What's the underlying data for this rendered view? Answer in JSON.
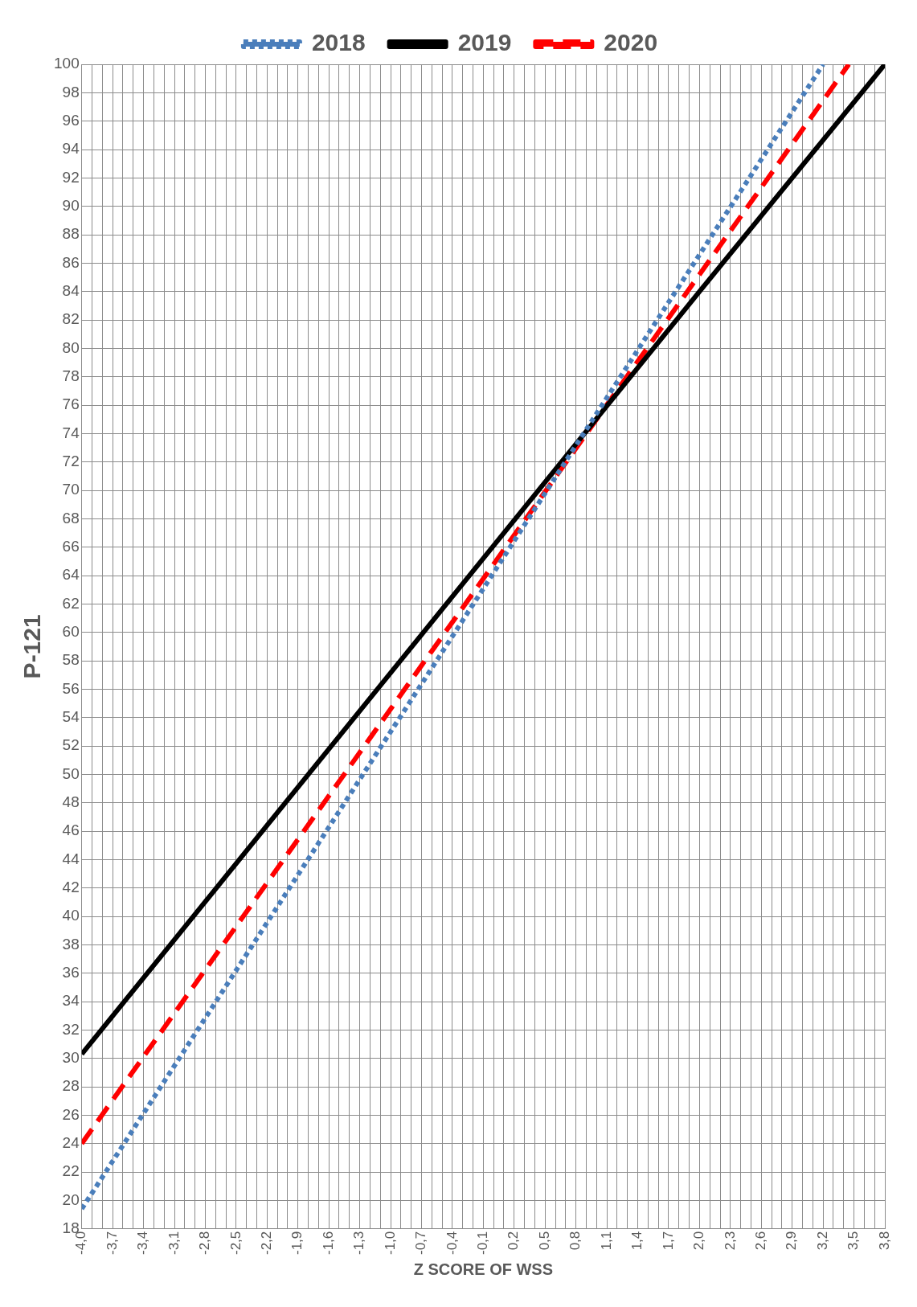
{
  "chart_data": {
    "type": "line",
    "xlabel": "Z SCORE OF WSS",
    "ylabel": "P-121",
    "xlim": [
      -4.0,
      3.8
    ],
    "ylim": [
      18,
      100
    ],
    "xticks": [
      {
        "value": -4.0,
        "label": "-4,0"
      },
      {
        "value": -3.9,
        "label": null
      },
      {
        "value": -3.8,
        "label": null
      },
      {
        "value": -3.7,
        "label": "-3,7"
      },
      {
        "value": -3.6,
        "label": null
      },
      {
        "value": -3.5,
        "label": null
      },
      {
        "value": -3.4,
        "label": "-3,4"
      },
      {
        "value": -3.3,
        "label": null
      },
      {
        "value": -3.2,
        "label": null
      },
      {
        "value": -3.1,
        "label": "-3,1"
      },
      {
        "value": -3.0,
        "label": null
      },
      {
        "value": -2.9,
        "label": null
      },
      {
        "value": -2.8,
        "label": "-2,8"
      },
      {
        "value": -2.7,
        "label": null
      },
      {
        "value": -2.6,
        "label": null
      },
      {
        "value": -2.5,
        "label": "-2,5"
      },
      {
        "value": -2.4,
        "label": null
      },
      {
        "value": -2.3,
        "label": null
      },
      {
        "value": -2.2,
        "label": "-2,2"
      },
      {
        "value": -2.1,
        "label": null
      },
      {
        "value": -2.0,
        "label": null
      },
      {
        "value": -1.9,
        "label": "-1,9"
      },
      {
        "value": -1.8,
        "label": null
      },
      {
        "value": -1.7,
        "label": null
      },
      {
        "value": -1.6,
        "label": "-1,6"
      },
      {
        "value": -1.5,
        "label": null
      },
      {
        "value": -1.4,
        "label": null
      },
      {
        "value": -1.3,
        "label": "-1,3"
      },
      {
        "value": -1.2,
        "label": null
      },
      {
        "value": -1.1,
        "label": null
      },
      {
        "value": -1.0,
        "label": "-1,0"
      },
      {
        "value": -0.9,
        "label": null
      },
      {
        "value": -0.8,
        "label": null
      },
      {
        "value": -0.7,
        "label": "-0,7"
      },
      {
        "value": -0.6,
        "label": null
      },
      {
        "value": -0.5,
        "label": null
      },
      {
        "value": -0.4,
        "label": "-0,4"
      },
      {
        "value": -0.3,
        "label": null
      },
      {
        "value": -0.2,
        "label": null
      },
      {
        "value": -0.1,
        "label": "-0,1"
      },
      {
        "value": 0.0,
        "label": null
      },
      {
        "value": 0.1,
        "label": null
      },
      {
        "value": 0.2,
        "label": "0,2"
      },
      {
        "value": 0.3,
        "label": null
      },
      {
        "value": 0.4,
        "label": null
      },
      {
        "value": 0.5,
        "label": "0,5"
      },
      {
        "value": 0.6,
        "label": null
      },
      {
        "value": 0.7,
        "label": null
      },
      {
        "value": 0.8,
        "label": "0,8"
      },
      {
        "value": 0.9,
        "label": null
      },
      {
        "value": 1.0,
        "label": null
      },
      {
        "value": 1.1,
        "label": "1,1"
      },
      {
        "value": 1.2,
        "label": null
      },
      {
        "value": 1.3,
        "label": null
      },
      {
        "value": 1.4,
        "label": "1,4"
      },
      {
        "value": 1.5,
        "label": null
      },
      {
        "value": 1.6,
        "label": null
      },
      {
        "value": 1.7,
        "label": "1,7"
      },
      {
        "value": 1.8,
        "label": null
      },
      {
        "value": 1.9,
        "label": null
      },
      {
        "value": 2.0,
        "label": "2,0"
      },
      {
        "value": 2.1,
        "label": null
      },
      {
        "value": 2.2,
        "label": null
      },
      {
        "value": 2.3,
        "label": "2,3"
      },
      {
        "value": 2.4,
        "label": null
      },
      {
        "value": 2.5,
        "label": null
      },
      {
        "value": 2.6,
        "label": "2,6"
      },
      {
        "value": 2.7,
        "label": null
      },
      {
        "value": 2.8,
        "label": null
      },
      {
        "value": 2.9,
        "label": "2,9"
      },
      {
        "value": 3.0,
        "label": null
      },
      {
        "value": 3.1,
        "label": null
      },
      {
        "value": 3.2,
        "label": "3,2"
      },
      {
        "value": 3.3,
        "label": null
      },
      {
        "value": 3.4,
        "label": null
      },
      {
        "value": 3.5,
        "label": "3,5"
      },
      {
        "value": 3.6,
        "label": null
      },
      {
        "value": 3.7,
        "label": null
      },
      {
        "value": 3.8,
        "label": "3,8"
      }
    ],
    "yticks": [
      18,
      20,
      22,
      24,
      26,
      28,
      30,
      32,
      34,
      36,
      38,
      40,
      42,
      44,
      46,
      48,
      50,
      52,
      54,
      56,
      58,
      60,
      62,
      64,
      66,
      68,
      70,
      72,
      74,
      76,
      78,
      80,
      82,
      84,
      86,
      88,
      90,
      92,
      94,
      96,
      98,
      100
    ],
    "grid": true,
    "legend": "top",
    "marker": "none",
    "series": [
      {
        "name": "2018",
        "color": "#4a7ebb",
        "line_style": "dotted",
        "x": [
          -4.0,
          -2.0,
          0.0,
          2.0,
          3.2
        ],
        "values": [
          19.4,
          41.8,
          64.2,
          86.6,
          100
        ]
      },
      {
        "name": "2019",
        "color": "#000000",
        "line_style": "solid",
        "x": [
          -4.0,
          -2.0,
          0.0,
          2.0,
          3.8
        ],
        "values": [
          30.3,
          48.2,
          66.1,
          84.0,
          100
        ]
      },
      {
        "name": "2020",
        "color": "#ff0000",
        "line_style": "dashed",
        "x": [
          -4.0,
          -2.0,
          0.0,
          2.0,
          3.45
        ],
        "values": [
          24.0,
          44.4,
          64.8,
          85.2,
          100
        ]
      }
    ]
  }
}
